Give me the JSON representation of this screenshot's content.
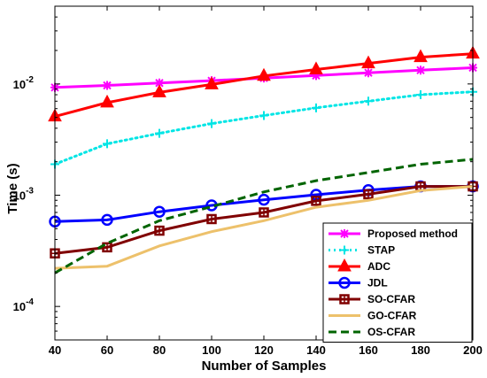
{
  "chart_data": {
    "type": "line",
    "title": "",
    "xlabel": "Number of Samples",
    "ylabel": "Time (s)",
    "xlim": [
      40,
      200
    ],
    "ylim": [
      5e-05,
      0.05
    ],
    "yscale": "log",
    "grid": false,
    "legend_position": "bottom-right",
    "x": [
      40,
      60,
      80,
      100,
      120,
      140,
      160,
      180,
      200
    ],
    "x_tick_labels": [
      "40",
      "60",
      "80",
      "100",
      "120",
      "140",
      "160",
      "180",
      "200"
    ],
    "y_ticks": [
      {
        "value": 0.0001,
        "base": "10",
        "exp": "-4"
      },
      {
        "value": 0.001,
        "base": "10",
        "exp": "-3"
      },
      {
        "value": 0.01,
        "base": "10",
        "exp": "-2"
      }
    ],
    "series": [
      {
        "name": "Proposed method",
        "color": "#ff00ff",
        "dash": "solid",
        "marker": "x-plus",
        "values": [
          0.0093,
          0.0097,
          0.0102,
          0.0107,
          0.0113,
          0.0119,
          0.0126,
          0.0133,
          0.014
        ]
      },
      {
        "name": "STAP",
        "color": "#00e5e5",
        "dash": "dotted",
        "marker": "plus",
        "values": [
          0.0019,
          0.0029,
          0.0036,
          0.0044,
          0.0052,
          0.0061,
          0.007,
          0.008,
          0.0085
        ]
      },
      {
        "name": "ADC",
        "color": "#ff0000",
        "dash": "solid",
        "marker": "triangle",
        "values": [
          0.0051,
          0.0068,
          0.0084,
          0.0099,
          0.0118,
          0.0135,
          0.0153,
          0.0174,
          0.0187
        ]
      },
      {
        "name": "JDL",
        "color": "#0000ff",
        "dash": "solid",
        "marker": "circle",
        "values": [
          0.00058,
          0.0006,
          0.00071,
          0.00081,
          0.00091,
          0.00101,
          0.00111,
          0.0012,
          0.0012
        ]
      },
      {
        "name": "SO-CFAR",
        "color": "#800000",
        "dash": "solid",
        "marker": "square",
        "values": [
          0.0003,
          0.00034,
          0.00048,
          0.00061,
          0.0007,
          0.00089,
          0.00102,
          0.0012,
          0.0012
        ]
      },
      {
        "name": "GO-CFAR",
        "color": "#edc16b",
        "dash": "solid",
        "marker": "none",
        "values": [
          0.00022,
          0.00023,
          0.00035,
          0.00047,
          0.00059,
          0.00078,
          0.0009,
          0.0011,
          0.0012
        ]
      },
      {
        "name": "OS-CFAR",
        "color": "#006400",
        "dash": "dashed",
        "marker": "none",
        "values": [
          0.0002,
          0.00037,
          0.00059,
          0.00079,
          0.00107,
          0.00135,
          0.0016,
          0.0019,
          0.0021
        ]
      }
    ]
  }
}
